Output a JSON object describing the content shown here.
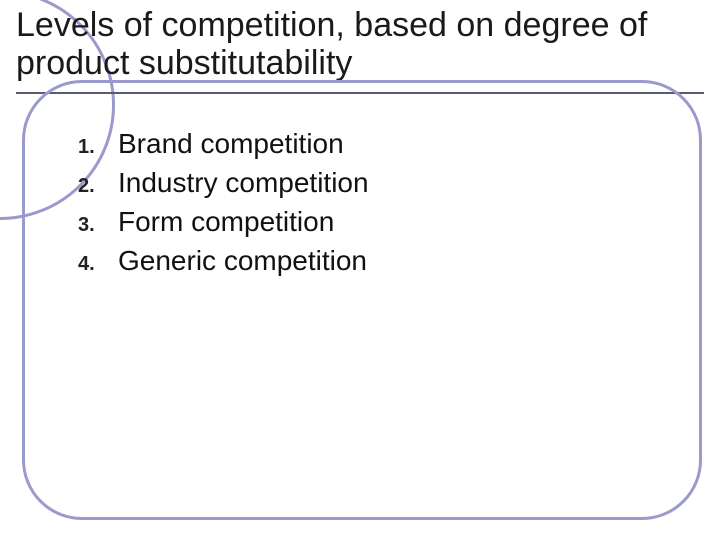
{
  "slide": {
    "title": "Levels of competition, based on degree of product substitutability",
    "title_fontsize": 34,
    "title_color": "#1a1a1a",
    "underline_color": "#5a5a70",
    "ring_color": "#9a9acc",
    "ring_border_width": 3,
    "background_color": "#ffffff",
    "list": {
      "number_fontsize": 20,
      "number_fontweight": "700",
      "item_fontsize": 28,
      "item_color": "#111111",
      "items": [
        {
          "num": "1.",
          "text": "Brand competition"
        },
        {
          "num": "2.",
          "text": "Industry competition"
        },
        {
          "num": "3.",
          "text": "Form competition"
        },
        {
          "num": "4.",
          "text": "Generic competition"
        }
      ]
    }
  }
}
